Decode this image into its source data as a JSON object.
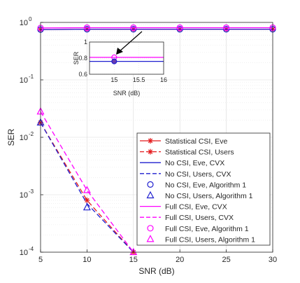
{
  "chart_data": {
    "type": "line",
    "xlabel": "SNR (dB)",
    "ylabel": "SER",
    "xlim": [
      5,
      30
    ],
    "ylim": [
      0.0001,
      1
    ],
    "yscale": "log",
    "grid": true,
    "x": [
      5,
      10,
      15,
      20,
      25,
      30
    ],
    "xticks": [
      "5",
      "10",
      "15",
      "20",
      "25",
      "30"
    ],
    "yticks": [
      {
        "value": 0.0001,
        "base": "10",
        "exp": "-4"
      },
      {
        "value": 0.001,
        "base": "10",
        "exp": "-3"
      },
      {
        "value": 0.01,
        "base": "10",
        "exp": "-2"
      },
      {
        "value": 0.1,
        "base": "10",
        "exp": "-1"
      },
      {
        "value": 1,
        "base": "10",
        "exp": "0"
      }
    ],
    "legend_position": "lower-right",
    "series": [
      {
        "name": "Statistical CSI, Eve",
        "color": "#e41a1c",
        "dash": "solid",
        "marker": "asterisk",
        "x": [
          5,
          10,
          15,
          20,
          25,
          30
        ],
        "y": [
          0.75,
          0.76,
          0.76,
          0.76,
          0.76,
          0.76
        ]
      },
      {
        "name": "Statistical CSI, Users",
        "color": "#e41a1c",
        "dash": "dashed",
        "marker": "asterisk",
        "x": [
          5,
          10,
          15
        ],
        "y": [
          0.018,
          0.0008,
          0.0001
        ]
      },
      {
        "name": "No CSI, Eve, CVX",
        "color": "#1f1fcf",
        "dash": "solid",
        "marker": "none",
        "x": [
          5,
          10,
          15,
          20,
          25,
          30
        ],
        "y": [
          0.75,
          0.76,
          0.76,
          0.76,
          0.76,
          0.76
        ]
      },
      {
        "name": "No CSI, Users, CVX",
        "color": "#1f1fcf",
        "dash": "dashed",
        "marker": "none",
        "x": [
          5,
          10,
          15
        ],
        "y": [
          0.018,
          0.0007,
          0.0001
        ]
      },
      {
        "name": "No CSI, Eve, Algorithm 1",
        "color": "#1f1fcf",
        "dash": "none",
        "marker": "circle",
        "x": [
          5,
          10,
          15,
          20,
          25,
          30
        ],
        "y": [
          0.75,
          0.76,
          0.76,
          0.76,
          0.76,
          0.76
        ]
      },
      {
        "name": "No CSI, Users, Algorithm 1",
        "color": "#1f1fcf",
        "dash": "none",
        "marker": "triangle",
        "x": [
          5,
          10
        ],
        "y": [
          0.018,
          0.0006
        ]
      },
      {
        "name": "Full CSI, Eve, CVX",
        "color": "#ff00ff",
        "dash": "solid",
        "marker": "none",
        "x": [
          5,
          10,
          15,
          20,
          25,
          30
        ],
        "y": [
          0.8,
          0.81,
          0.81,
          0.81,
          0.81,
          0.81
        ]
      },
      {
        "name": "Full CSI, Users, CVX",
        "color": "#ff00ff",
        "dash": "dashed",
        "marker": "none",
        "x": [
          5,
          10,
          15
        ],
        "y": [
          0.028,
          0.0012,
          0.0001
        ]
      },
      {
        "name": "Full CSI, Eve, Algorithm 1",
        "color": "#ff00ff",
        "dash": "none",
        "marker": "circle",
        "x": [
          5,
          10,
          15,
          20,
          25,
          30
        ],
        "y": [
          0.8,
          0.81,
          0.81,
          0.81,
          0.81,
          0.81
        ]
      },
      {
        "name": "Full CSI, Users, Algorithm 1",
        "color": "#ff00ff",
        "dash": "none",
        "marker": "triangle",
        "x": [
          5,
          10,
          15
        ],
        "y": [
          0.028,
          0.0012,
          0.0001
        ]
      }
    ],
    "inset": {
      "xlabel": "SNR (dB)",
      "ylabel": "SER",
      "xlim": [
        14.5,
        16
      ],
      "ylim": [
        0.6,
        1
      ],
      "xticks": [
        "15",
        "15.5",
        "16"
      ],
      "yticks": [
        "0.6",
        "0.8",
        "1"
      ],
      "series": [
        {
          "color": "#ff00ff",
          "y": 0.81,
          "marker_x": 15
        },
        {
          "color": "#1f1fcf",
          "y": 0.76,
          "marker_x": 15
        }
      ]
    }
  }
}
